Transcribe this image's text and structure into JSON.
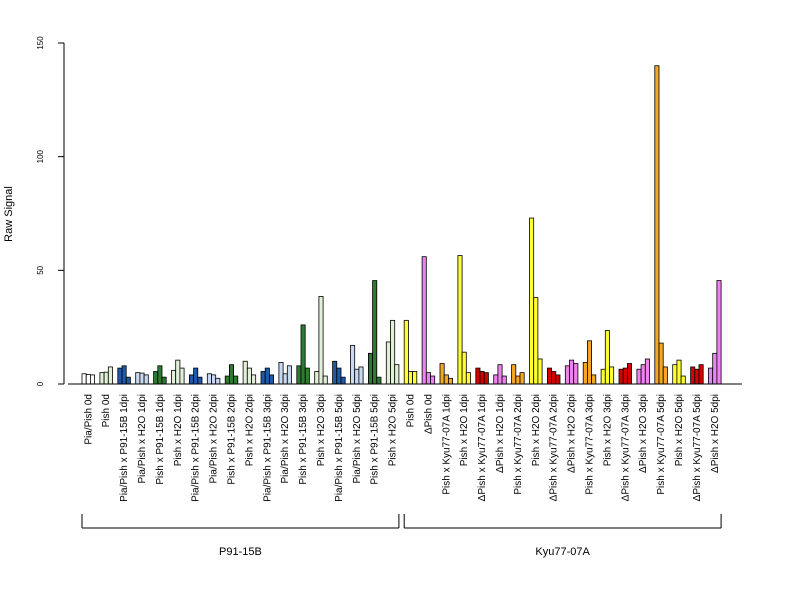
{
  "chart_data": {
    "type": "bar",
    "ylabel": "Raw Signal",
    "xlabel": "",
    "ylim": [
      0,
      150
    ],
    "yticks": [
      0,
      50,
      100,
      150
    ],
    "colors": {
      "white": "#ffffff",
      "light_green": "#e2efd9",
      "blue": "#1f5aa8",
      "light_blue": "#c9d9f0",
      "dark_green": "#2f7a33",
      "yellow": "#ffff33",
      "violet": "#ee82ee",
      "orange": "#f5a623",
      "red": "#d40000"
    },
    "categories": [
      {
        "label": "Pia/Pish 0d",
        "color": "white",
        "values": [
          4.5,
          4.2,
          4.0
        ]
      },
      {
        "label": "Pish 0d",
        "color": "light_green",
        "values": [
          5.0,
          5.2,
          7.5
        ]
      },
      {
        "label": "Pia/Pish x P91-15B 1dpi",
        "color": "blue",
        "values": [
          7.0,
          8.0,
          3.0
        ]
      },
      {
        "label": "Pia/Pish x H2O 1dpi",
        "color": "light_blue",
        "values": [
          5.0,
          4.8,
          4.0
        ]
      },
      {
        "label": "Pish x P91-15B 1dpi",
        "color": "dark_green",
        "values": [
          5.5,
          8.0,
          3.0
        ]
      },
      {
        "label": "Pish x H2O 1dpi",
        "color": "light_green",
        "values": [
          6.0,
          10.5,
          7.0
        ]
      },
      {
        "label": "Pia/Pish x P91-15B 2dpi",
        "color": "blue",
        "values": [
          4.0,
          7.0,
          3.0
        ]
      },
      {
        "label": "Pia/Pish x H2O 2dpi",
        "color": "light_blue",
        "values": [
          4.5,
          4.0,
          2.5
        ]
      },
      {
        "label": "Pish x P91-15B 2dpi",
        "color": "dark_green",
        "values": [
          3.5,
          8.5,
          3.5
        ]
      },
      {
        "label": "Pish x H2O 2dpi",
        "color": "light_green",
        "values": [
          10.0,
          7.0,
          4.0
        ]
      },
      {
        "label": "Pia/Pish x P91-15B 3dpi",
        "color": "blue",
        "values": [
          5.5,
          7.0,
          4.0
        ]
      },
      {
        "label": "Pia/Pish x H2O 3dpi",
        "color": "light_blue",
        "values": [
          9.5,
          4.5,
          8.0
        ]
      },
      {
        "label": "Pish x P91-15B 3dpi",
        "color": "dark_green",
        "values": [
          8.0,
          26.0,
          7.0
        ]
      },
      {
        "label": "Pish x H2O 3dpi",
        "color": "light_green",
        "values": [
          5.5,
          38.5,
          3.5
        ]
      },
      {
        "label": "Pia/Pish x P91-15B 5dpi",
        "color": "blue",
        "values": [
          10.0,
          7.0,
          3.0
        ]
      },
      {
        "label": "Pia/Pish x H2O 5dpi",
        "color": "light_blue",
        "values": [
          17.0,
          6.5,
          7.5
        ]
      },
      {
        "label": "Pish x P91-15B 5dpi",
        "color": "dark_green",
        "values": [
          13.5,
          45.5,
          3.0
        ]
      },
      {
        "label": "Pish x H2O 5dpi",
        "color": "light_green",
        "values": [
          18.5,
          28.0,
          8.5
        ]
      },
      {
        "label": "Pish 0d",
        "color": "yellow",
        "values": [
          28.0,
          5.5,
          5.5
        ]
      },
      {
        "label": "ΔPish 0d",
        "color": "violet",
        "values": [
          56.0,
          5.0,
          3.5
        ]
      },
      {
        "label": "Pish x Kyu77-07A 1dpi",
        "color": "orange",
        "values": [
          9.0,
          4.0,
          2.5
        ]
      },
      {
        "label": "Pish x H2O 1dpi",
        "color": "yellow",
        "values": [
          56.5,
          14.0,
          5.0
        ]
      },
      {
        "label": "ΔPish x Kyu77-07A 1dpi",
        "color": "red",
        "values": [
          7.0,
          5.5,
          5.0
        ]
      },
      {
        "label": "ΔPish x H2O 1dpi",
        "color": "violet",
        "values": [
          4.0,
          8.5,
          3.5
        ]
      },
      {
        "label": "Pish x Kyu77-07A 2dpi",
        "color": "orange",
        "values": [
          8.5,
          3.5,
          5.0
        ]
      },
      {
        "label": "Pish x H2O 2dpi",
        "color": "yellow",
        "values": [
          73.0,
          38.0,
          11.0
        ]
      },
      {
        "label": "ΔPish x Kyu77-07A 2dpi",
        "color": "red",
        "values": [
          7.0,
          5.5,
          4.0
        ]
      },
      {
        "label": "ΔPish x H2O 2dpi",
        "color": "violet",
        "values": [
          8.0,
          10.5,
          9.0
        ]
      },
      {
        "label": "Pish x Kyu77-07A 3dpi",
        "color": "orange",
        "values": [
          9.5,
          19.0,
          4.0
        ]
      },
      {
        "label": "Pish x H2O 3dpi",
        "color": "yellow",
        "values": [
          6.5,
          23.5,
          7.5
        ]
      },
      {
        "label": "ΔPish x Kyu77-07A 3dpi",
        "color": "red",
        "values": [
          6.5,
          7.0,
          9.0
        ]
      },
      {
        "label": "ΔPish x H2O 3dpi",
        "color": "violet",
        "values": [
          6.5,
          8.5,
          11.0
        ]
      },
      {
        "label": "Pish x Kyu77-07A 5dpi",
        "color": "orange",
        "values": [
          140.0,
          18.0,
          7.5
        ]
      },
      {
        "label": "Pish x H2O 5dpi",
        "color": "yellow",
        "values": [
          8.5,
          10.5,
          3.5
        ]
      },
      {
        "label": "ΔPish x Kyu77-07A 5dpi",
        "color": "red",
        "values": [
          7.5,
          6.5,
          8.5
        ]
      },
      {
        "label": "ΔPish x H2O 5dpi",
        "color": "violet",
        "values": [
          7.0,
          13.5,
          45.5
        ]
      }
    ],
    "groups": [
      {
        "label": "P91-15B",
        "first": 0,
        "last": 17
      },
      {
        "label": "Kyu77-07A",
        "first": 18,
        "last": 35
      }
    ]
  }
}
